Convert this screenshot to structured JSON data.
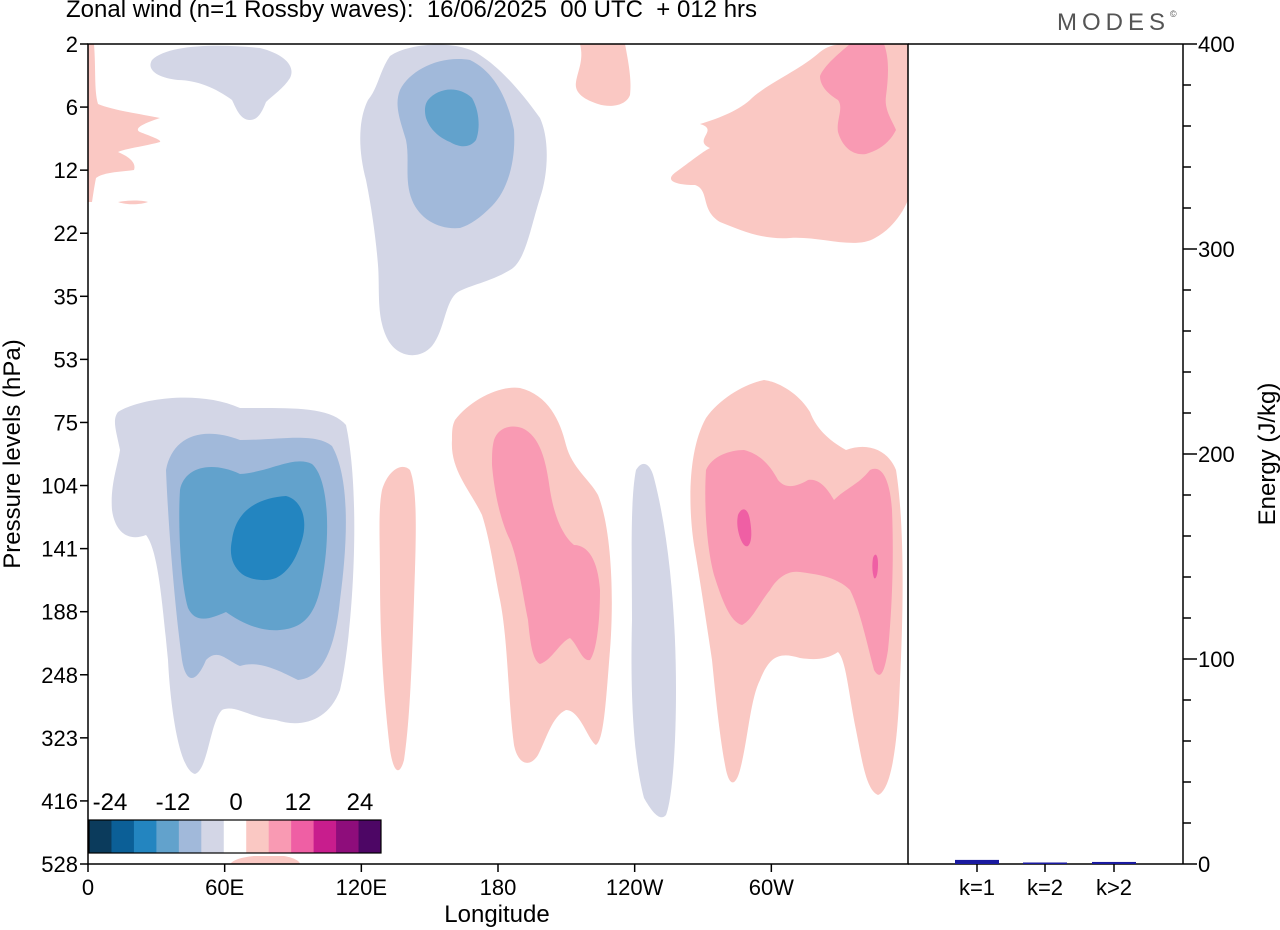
{
  "title": "Zonal wind (n=1 Rossby waves):  16/06/2025  00 UTC  + 012 hrs",
  "logo": "MODES",
  "logo_mark": "©",
  "chart_data": [
    {
      "type": "heatmap",
      "title": "Zonal wind (n=1 Rossby waves):  16/06/2025  00 UTC  + 012 hrs",
      "xlabel": "Longitude",
      "ylabel": "Pressure levels (hPa)",
      "x_ticks": [
        "0",
        "60E",
        "120E",
        "180",
        "120W",
        "60W"
      ],
      "x_tick_degrees": [
        0,
        60,
        120,
        180,
        240,
        300
      ],
      "xlim": [
        0,
        360
      ],
      "y_ticks": [
        "2",
        "6",
        "12",
        "22",
        "35",
        "53",
        "75",
        "104",
        "141",
        "188",
        "248",
        "323",
        "416",
        "528"
      ],
      "y_scale": "log (pressure levels, top = 2 hPa)",
      "legend": {
        "placement": "bottom-left",
        "labels": [
          "-24",
          "-12",
          "0",
          "12",
          "24"
        ],
        "colors": [
          "#0b3b5c",
          "#0b5f97",
          "#2385c0",
          "#62a2cc",
          "#a1b9da",
          "#d3d6e6",
          "#ffffff",
          "#fac8c3",
          "#f99ab3",
          "#ef5fa4",
          "#c81d8d",
          "#8e0d7b",
          "#4d0665"
        ]
      },
      "features": [
        {
          "sign": "negative",
          "center_lon": 60,
          "center_p": 141,
          "peak_ms": -18
        },
        {
          "sign": "negative",
          "center_lon": 165,
          "center_p": 8,
          "peak_ms": -12
        },
        {
          "sign": "negative",
          "center_lon": 235,
          "center_p": 220,
          "peak_ms": -3
        },
        {
          "sign": "positive",
          "center_lon": 190,
          "center_p": 141,
          "peak_ms": 9
        },
        {
          "sign": "positive",
          "center_lon": 300,
          "center_p": 141,
          "peak_ms": 15
        },
        {
          "sign": "positive",
          "center_lon": 340,
          "center_p": 8,
          "peak_ms": 9
        },
        {
          "sign": "positive",
          "center_lon": 138,
          "center_p": 180,
          "peak_ms": 3
        }
      ]
    },
    {
      "type": "bar",
      "ylabel": "Energy (J/kg)",
      "ylim": [
        0,
        400
      ],
      "y_ticks": [
        "0",
        "100",
        "200",
        "300",
        "400"
      ],
      "categories": [
        "k=1",
        "k=2",
        "k>2"
      ],
      "values": [
        2,
        0.5,
        1
      ],
      "bar_color": "#1a1aa0"
    }
  ]
}
